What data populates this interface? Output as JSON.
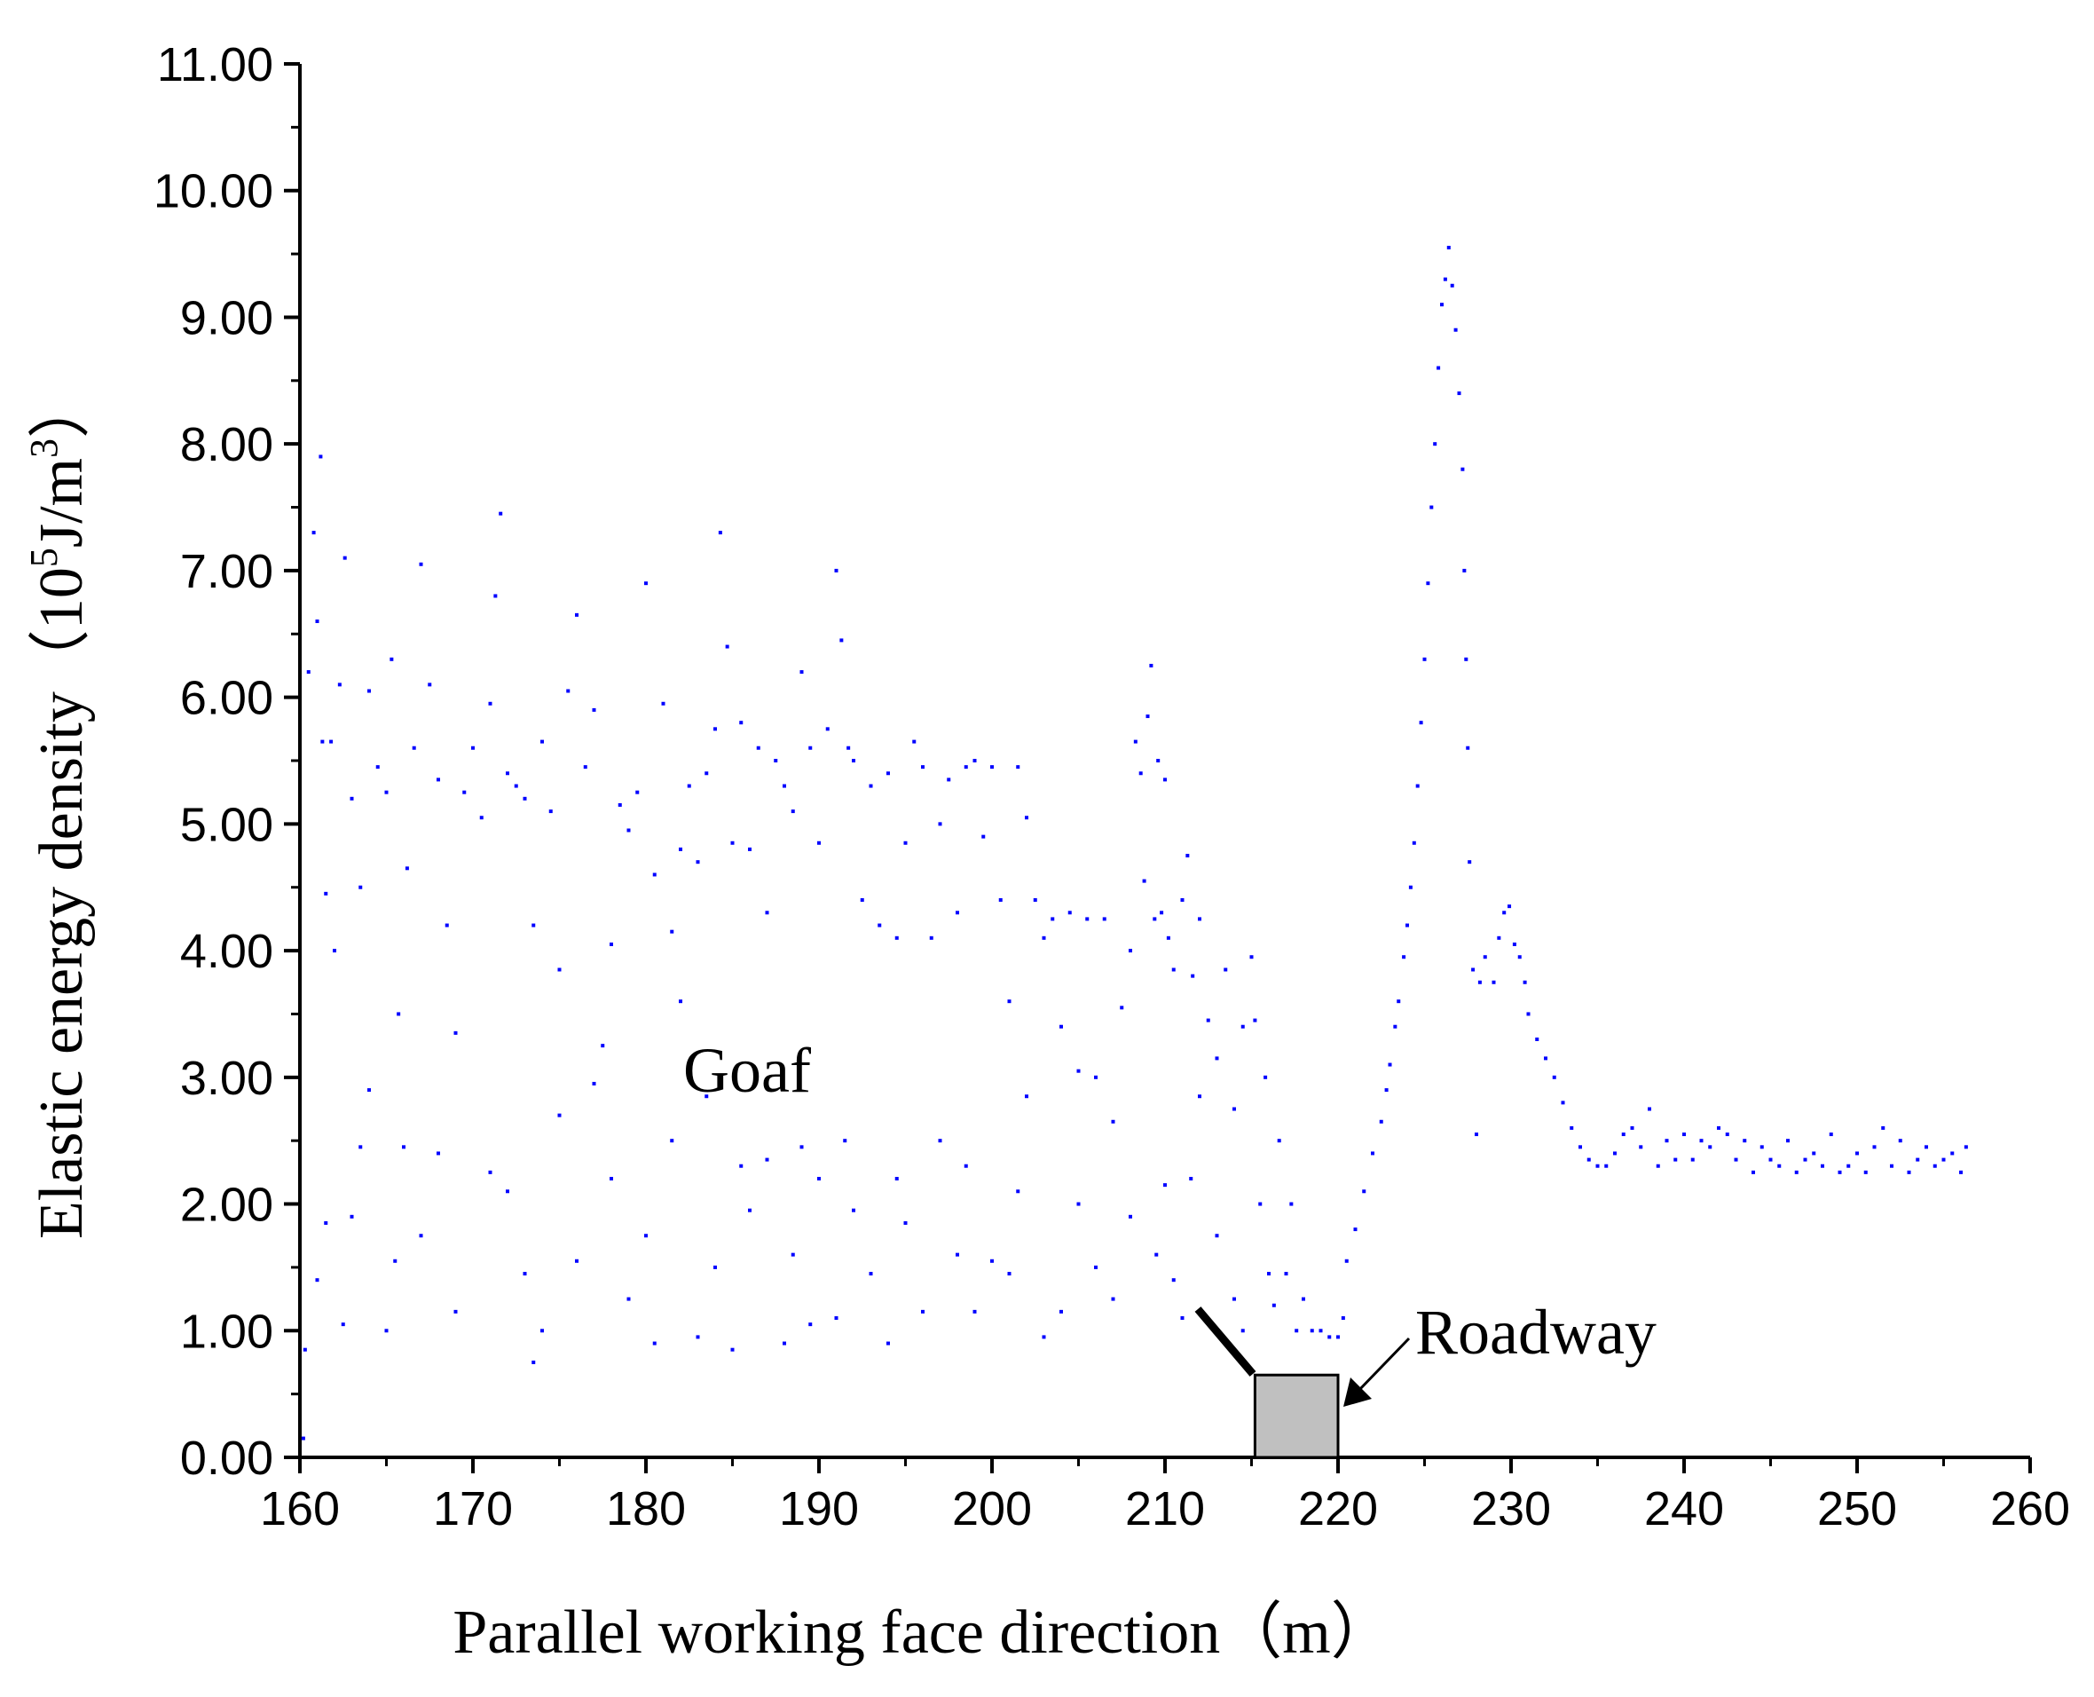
{
  "chart_data": {
    "type": "scatter",
    "xlabel": "Parallel working face direction（m）",
    "ylabel_main": "Elastic energy density（10",
    "ylabel_sup5": "5",
    "ylabel_mid": "J/m",
    "ylabel_sup3": "3",
    "ylabel_end": "）",
    "xlim": [
      160,
      260
    ],
    "ylim": [
      0,
      11
    ],
    "x_ticks": [
      "160",
      "170",
      "180",
      "190",
      "200",
      "210",
      "220",
      "230",
      "240",
      "250",
      "260"
    ],
    "y_ticks": [
      "0.00",
      "1.00",
      "2.00",
      "3.00",
      "4.00",
      "5.00",
      "6.00",
      "7.00",
      "8.00",
      "9.00",
      "10.00",
      "11.00"
    ],
    "grid": false,
    "marker_color": "#0000ff",
    "annotations": {
      "goaf": "Goaf",
      "roadway": "Roadway"
    },
    "roadway_box": {
      "x": [
        215.2,
        220
      ],
      "y": [
        0,
        0.65
      ],
      "fill": "#c0c0c0"
    },
    "series": [
      {
        "description_points": [
          [
            160.2,
            0.15
          ],
          [
            160.5,
            6.2
          ],
          [
            160.8,
            7.3
          ],
          [
            161.0,
            6.6
          ],
          [
            161.2,
            7.9
          ],
          [
            161.3,
            5.65
          ],
          [
            161.5,
            4.45
          ],
          [
            161.8,
            5.65
          ],
          [
            162.0,
            4.0
          ],
          [
            162.3,
            6.1
          ],
          [
            162.6,
            7.1
          ],
          [
            163.0,
            5.2
          ],
          [
            163.5,
            4.5
          ],
          [
            164.0,
            6.05
          ],
          [
            164.5,
            5.45
          ],
          [
            165.0,
            5.25
          ],
          [
            165.3,
            6.3
          ],
          [
            165.7,
            3.5
          ],
          [
            166.2,
            4.65
          ],
          [
            166.6,
            5.6
          ],
          [
            167.0,
            7.05
          ],
          [
            167.5,
            6.1
          ],
          [
            168.0,
            5.35
          ],
          [
            168.5,
            4.2
          ],
          [
            169.0,
            3.35
          ],
          [
            169.5,
            5.25
          ],
          [
            170.0,
            5.6
          ],
          [
            170.5,
            5.05
          ],
          [
            171.0,
            5.95
          ],
          [
            171.3,
            6.8
          ],
          [
            171.6,
            7.45
          ],
          [
            172.0,
            5.4
          ],
          [
            172.5,
            5.3
          ],
          [
            173.0,
            5.2
          ],
          [
            173.5,
            4.2
          ],
          [
            174.0,
            5.65
          ],
          [
            174.5,
            5.1
          ],
          [
            175.0,
            3.85
          ],
          [
            175.5,
            6.05
          ],
          [
            176.0,
            6.65
          ],
          [
            176.5,
            5.45
          ],
          [
            177.0,
            5.9
          ],
          [
            177.5,
            3.25
          ],
          [
            178.0,
            4.05
          ],
          [
            178.5,
            5.15
          ],
          [
            179.0,
            4.95
          ],
          [
            179.5,
            5.25
          ],
          [
            180.0,
            6.9
          ],
          [
            180.5,
            4.6
          ],
          [
            181.0,
            5.95
          ],
          [
            181.5,
            4.15
          ],
          [
            182.0,
            4.8
          ],
          [
            182.5,
            5.3
          ],
          [
            183.0,
            4.7
          ],
          [
            183.5,
            5.4
          ],
          [
            184.0,
            5.75
          ],
          [
            184.3,
            7.3
          ],
          [
            184.7,
            6.4
          ],
          [
            185.0,
            4.85
          ],
          [
            185.5,
            5.8
          ],
          [
            186.0,
            4.8
          ],
          [
            186.5,
            5.6
          ],
          [
            187.0,
            4.3
          ],
          [
            187.5,
            5.5
          ],
          [
            188.0,
            5.3
          ],
          [
            188.5,
            5.1
          ],
          [
            189.0,
            6.2
          ],
          [
            189.5,
            5.6
          ],
          [
            190.0,
            4.85
          ],
          [
            190.5,
            5.75
          ],
          [
            191.0,
            7.0
          ],
          [
            191.3,
            6.45
          ],
          [
            191.7,
            5.6
          ],
          [
            192.0,
            5.5
          ],
          [
            192.5,
            4.4
          ],
          [
            193.0,
            5.3
          ],
          [
            193.5,
            4.2
          ],
          [
            194.0,
            5.4
          ],
          [
            194.5,
            4.1
          ],
          [
            195.0,
            4.85
          ],
          [
            195.5,
            5.65
          ],
          [
            196.0,
            5.45
          ],
          [
            196.5,
            4.1
          ],
          [
            197.0,
            5.0
          ],
          [
            197.5,
            5.35
          ],
          [
            198.0,
            4.3
          ],
          [
            198.5,
            5.45
          ],
          [
            199.0,
            5.5
          ],
          [
            199.5,
            4.9
          ],
          [
            200.0,
            5.45
          ],
          [
            200.5,
            4.4
          ],
          [
            201.0,
            3.6
          ],
          [
            201.5,
            5.45
          ],
          [
            202.0,
            5.05
          ],
          [
            202.5,
            4.4
          ],
          [
            203.0,
            4.1
          ],
          [
            203.5,
            4.25
          ],
          [
            204.0,
            3.4
          ],
          [
            204.5,
            4.3
          ],
          [
            205.0,
            3.05
          ],
          [
            205.5,
            4.25
          ],
          [
            206.0,
            3.0
          ],
          [
            206.5,
            4.25
          ],
          [
            207.0,
            2.65
          ],
          [
            207.5,
            3.55
          ],
          [
            208.0,
            4.0
          ],
          [
            208.3,
            5.65
          ],
          [
            208.6,
            5.4
          ],
          [
            208.8,
            4.55
          ],
          [
            209.0,
            5.85
          ],
          [
            209.2,
            6.25
          ],
          [
            209.4,
            4.25
          ],
          [
            209.6,
            5.5
          ],
          [
            209.8,
            4.3
          ],
          [
            210.0,
            5.35
          ],
          [
            210.2,
            4.1
          ],
          [
            210.5,
            3.85
          ],
          [
            211.0,
            4.4
          ],
          [
            211.3,
            4.75
          ],
          [
            211.6,
            3.8
          ],
          [
            212.0,
            4.25
          ],
          [
            212.5,
            3.45
          ],
          [
            213.0,
            3.15
          ],
          [
            213.5,
            3.85
          ],
          [
            214.0,
            2.75
          ],
          [
            214.5,
            3.4
          ],
          [
            215.0,
            3.95
          ],
          [
            215.2,
            3.45
          ],
          [
            215.5,
            2.0
          ],
          [
            215.8,
            3.0
          ],
          [
            216.0,
            1.45
          ],
          [
            216.3,
            1.2
          ],
          [
            216.6,
            2.5
          ],
          [
            217.0,
            1.45
          ],
          [
            217.3,
            2.0
          ],
          [
            217.6,
            1.0
          ],
          [
            218.0,
            1.25
          ],
          [
            218.5,
            1.0
          ],
          [
            219.0,
            1.0
          ],
          [
            219.5,
            0.95
          ],
          [
            220.0,
            0.95
          ],
          [
            220.3,
            1.1
          ],
          [
            220.5,
            1.55
          ],
          [
            221.0,
            1.8
          ],
          [
            221.5,
            2.1
          ],
          [
            222.0,
            2.4
          ],
          [
            222.5,
            2.65
          ],
          [
            222.8,
            2.9
          ],
          [
            223.0,
            3.1
          ],
          [
            223.3,
            3.4
          ],
          [
            223.5,
            3.6
          ],
          [
            223.8,
            3.95
          ],
          [
            224.0,
            4.2
          ],
          [
            224.2,
            4.5
          ],
          [
            224.4,
            4.85
          ],
          [
            224.6,
            5.3
          ],
          [
            224.8,
            5.8
          ],
          [
            225.0,
            6.3
          ],
          [
            225.2,
            6.9
          ],
          [
            225.4,
            7.5
          ],
          [
            225.6,
            8.0
          ],
          [
            225.8,
            8.6
          ],
          [
            226.0,
            9.1
          ],
          [
            226.2,
            9.3
          ],
          [
            226.4,
            9.55
          ],
          [
            226.6,
            9.25
          ],
          [
            226.8,
            8.9
          ],
          [
            227.0,
            8.4
          ],
          [
            227.2,
            7.8
          ],
          [
            227.3,
            7.0
          ],
          [
            227.4,
            6.3
          ],
          [
            227.5,
            5.6
          ],
          [
            227.6,
            4.7
          ],
          [
            227.8,
            3.85
          ],
          [
            228.0,
            2.55
          ],
          [
            228.2,
            3.75
          ],
          [
            228.5,
            3.95
          ],
          [
            229.0,
            3.75
          ],
          [
            229.3,
            4.1
          ],
          [
            229.6,
            4.3
          ],
          [
            229.9,
            4.35
          ],
          [
            230.2,
            4.05
          ],
          [
            230.5,
            3.95
          ],
          [
            230.8,
            3.75
          ],
          [
            231.0,
            3.5
          ],
          [
            231.5,
            3.3
          ],
          [
            232.0,
            3.15
          ],
          [
            232.5,
            3.0
          ],
          [
            233.0,
            2.8
          ],
          [
            233.5,
            2.6
          ],
          [
            234.0,
            2.45
          ],
          [
            234.5,
            2.35
          ],
          [
            235.0,
            2.3
          ],
          [
            235.5,
            2.3
          ],
          [
            236.0,
            2.4
          ],
          [
            236.5,
            2.55
          ],
          [
            237.0,
            2.6
          ],
          [
            237.5,
            2.45
          ],
          [
            238.0,
            2.75
          ],
          [
            238.5,
            2.3
          ],
          [
            239.0,
            2.5
          ],
          [
            239.5,
            2.35
          ],
          [
            240.0,
            2.55
          ],
          [
            240.5,
            2.35
          ],
          [
            241.0,
            2.5
          ],
          [
            241.5,
            2.45
          ],
          [
            242.0,
            2.6
          ],
          [
            242.5,
            2.55
          ],
          [
            243.0,
            2.35
          ],
          [
            243.5,
            2.5
          ],
          [
            244.0,
            2.25
          ],
          [
            244.5,
            2.45
          ],
          [
            245.0,
            2.35
          ],
          [
            245.5,
            2.3
          ],
          [
            246.0,
            2.5
          ],
          [
            246.5,
            2.25
          ],
          [
            247.0,
            2.35
          ],
          [
            247.5,
            2.4
          ],
          [
            248.0,
            2.3
          ],
          [
            248.5,
            2.55
          ],
          [
            249.0,
            2.25
          ],
          [
            249.5,
            2.3
          ],
          [
            250.0,
            2.4
          ],
          [
            250.5,
            2.25
          ],
          [
            251.0,
            2.45
          ],
          [
            251.5,
            2.6
          ],
          [
            252.0,
            2.3
          ],
          [
            252.5,
            2.5
          ],
          [
            253.0,
            2.25
          ],
          [
            253.5,
            2.35
          ],
          [
            254.0,
            2.45
          ],
          [
            254.5,
            2.3
          ],
          [
            255.0,
            2.35
          ],
          [
            255.5,
            2.4
          ],
          [
            256.0,
            2.25
          ],
          [
            256.3,
            2.45
          ]
        ],
        "description_low": [
          [
            160.3,
            0.85
          ],
          [
            161.0,
            1.4
          ],
          [
            161.5,
            1.85
          ],
          [
            162.5,
            1.05
          ],
          [
            163.0,
            1.9
          ],
          [
            163.5,
            2.45
          ],
          [
            164.0,
            2.9
          ],
          [
            165.0,
            1.0
          ],
          [
            165.5,
            1.55
          ],
          [
            166.0,
            2.45
          ],
          [
            167.0,
            1.75
          ],
          [
            168.0,
            2.4
          ],
          [
            169.0,
            1.15
          ],
          [
            171.0,
            2.25
          ],
          [
            172.0,
            2.1
          ],
          [
            173.0,
            1.45
          ],
          [
            173.5,
            0.75
          ],
          [
            174.0,
            1.0
          ],
          [
            175.0,
            2.7
          ],
          [
            176.0,
            1.55
          ],
          [
            177.0,
            2.95
          ],
          [
            178.0,
            2.2
          ],
          [
            179.0,
            1.25
          ],
          [
            180.0,
            1.75
          ],
          [
            180.5,
            0.9
          ],
          [
            181.5,
            2.5
          ],
          [
            182.0,
            3.6
          ],
          [
            183.0,
            0.95
          ],
          [
            183.5,
            2.85
          ],
          [
            184.0,
            1.5
          ],
          [
            185.0,
            0.85
          ],
          [
            185.5,
            2.3
          ],
          [
            186.0,
            1.95
          ],
          [
            187.0,
            2.35
          ],
          [
            188.0,
            0.9
          ],
          [
            188.5,
            1.6
          ],
          [
            189.0,
            2.45
          ],
          [
            189.5,
            1.05
          ],
          [
            190.0,
            2.2
          ],
          [
            191.0,
            1.1
          ],
          [
            191.5,
            2.5
          ],
          [
            192.0,
            1.95
          ],
          [
            193.0,
            1.45
          ],
          [
            194.0,
            0.9
          ],
          [
            194.5,
            2.2
          ],
          [
            195.0,
            1.85
          ],
          [
            196.0,
            1.15
          ],
          [
            197.0,
            2.5
          ],
          [
            198.0,
            1.6
          ],
          [
            198.5,
            2.3
          ],
          [
            199.0,
            1.15
          ],
          [
            200.0,
            1.55
          ],
          [
            201.0,
            1.45
          ],
          [
            201.5,
            2.1
          ],
          [
            202.0,
            2.85
          ],
          [
            203.0,
            0.95
          ],
          [
            204.0,
            1.15
          ],
          [
            205.0,
            2.0
          ],
          [
            206.0,
            1.5
          ],
          [
            207.0,
            1.25
          ],
          [
            208.0,
            1.9
          ],
          [
            209.5,
            1.6
          ],
          [
            210.0,
            2.15
          ],
          [
            210.5,
            1.4
          ],
          [
            211.0,
            1.1
          ],
          [
            211.5,
            2.2
          ],
          [
            212.0,
            2.85
          ],
          [
            213.0,
            1.75
          ],
          [
            214.0,
            1.25
          ],
          [
            214.5,
            1.0
          ]
        ],
        "name": ""
      }
    ]
  }
}
